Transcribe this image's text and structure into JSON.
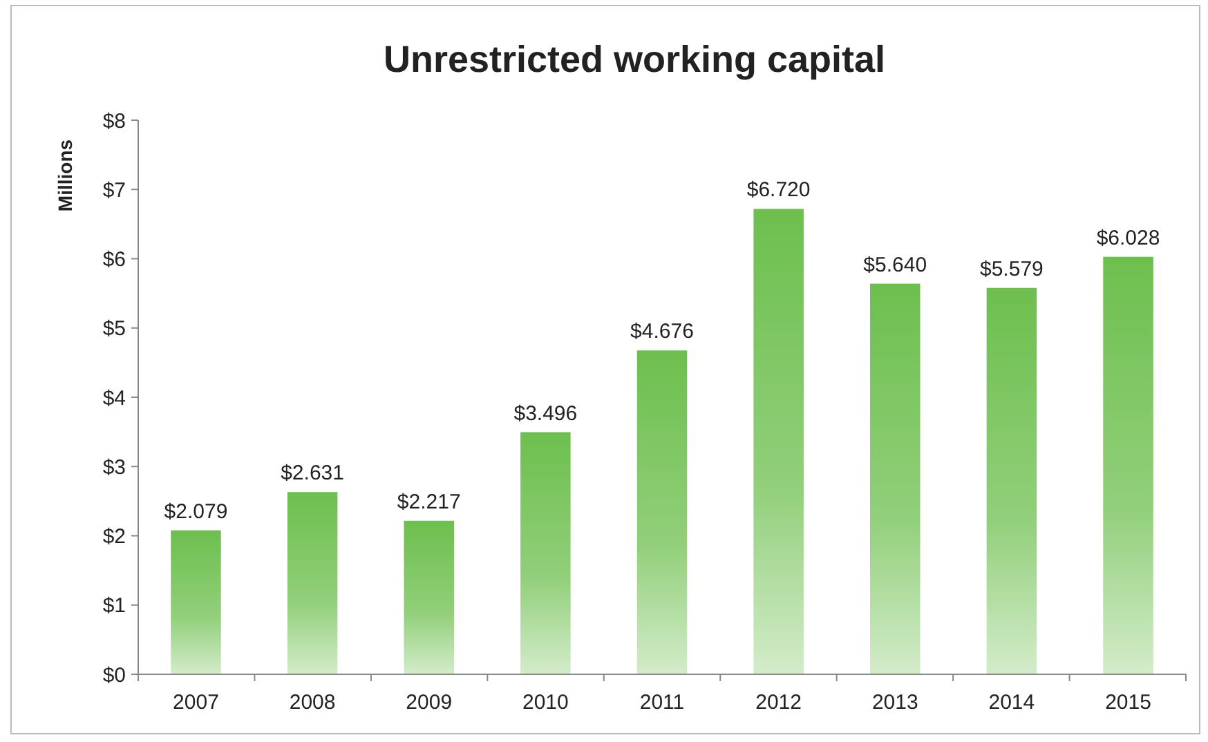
{
  "chart_data": {
    "type": "bar",
    "title": "Unrestricted working capital",
    "ylabel": "Millions",
    "categories": [
      "2007",
      "2008",
      "2009",
      "2010",
      "2011",
      "2012",
      "2013",
      "2014",
      "2015"
    ],
    "values": [
      2.079,
      2.631,
      2.217,
      3.496,
      4.676,
      6.72,
      5.64,
      5.579,
      6.028
    ],
    "value_labels": [
      "$2.079",
      "$2.631",
      "$2.217",
      "$3.496",
      "$4.676",
      "$6.720",
      "$5.640",
      "$5.579",
      "$6.028"
    ],
    "color": "#6dbf4e",
    "ylim": [
      0,
      8
    ],
    "yticks": [
      {
        "value": 0,
        "label": "$0"
      },
      {
        "value": 1,
        "label": "$1"
      },
      {
        "value": 2,
        "label": "$2"
      },
      {
        "value": 3,
        "label": "$3"
      },
      {
        "value": 4,
        "label": "$4"
      },
      {
        "value": 5,
        "label": "$5"
      },
      {
        "value": 6,
        "label": "$6"
      },
      {
        "value": 7,
        "label": "$7"
      },
      {
        "value": 8,
        "label": "$8"
      }
    ],
    "grid": false
  }
}
